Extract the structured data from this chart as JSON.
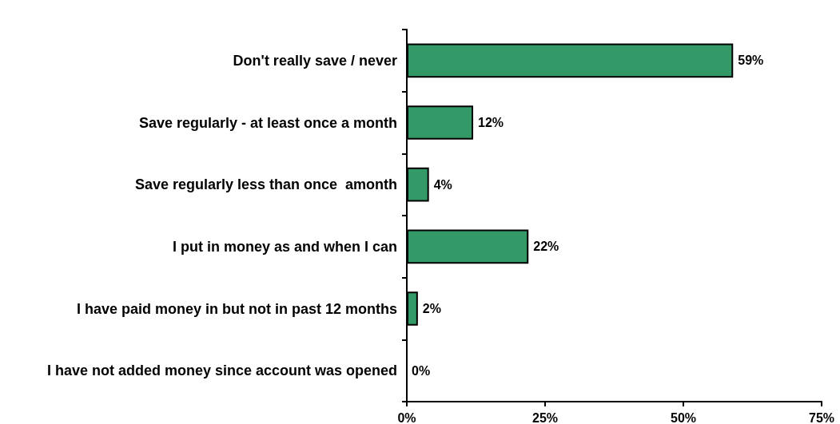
{
  "chart_data": {
    "type": "bar",
    "orientation": "horizontal",
    "categories": [
      "Don't really save / never",
      "Save regularly - at least once a month",
      "Save regularly less than once  amonth",
      "I put in money as and when I can",
      "I have paid money in but not in past 12 months",
      "I have not added money since account was opened"
    ],
    "values": [
      59,
      12,
      4,
      22,
      2,
      0
    ],
    "value_labels": [
      "59%",
      "12%",
      "4%",
      "22%",
      "2%",
      "0%"
    ],
    "color": "#339966",
    "xlim": [
      0,
      75
    ],
    "xticks": [
      {
        "value": 0,
        "label": "0%"
      },
      {
        "value": 25,
        "label": "25%"
      },
      {
        "value": 50,
        "label": "50%"
      },
      {
        "value": 75,
        "label": "75%"
      }
    ],
    "grid": false
  }
}
